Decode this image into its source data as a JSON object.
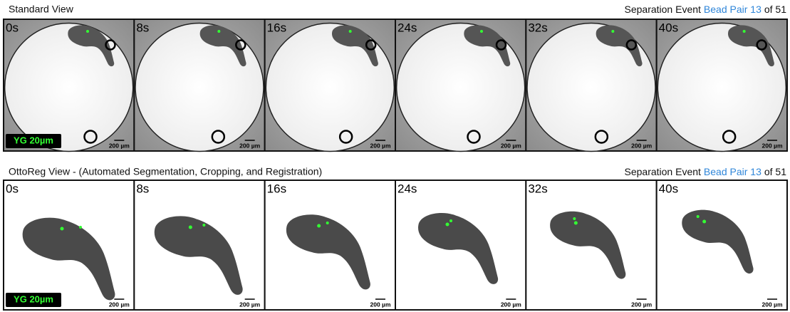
{
  "rows": [
    {
      "title": "Standard View",
      "event": {
        "prefix": "Separation Event",
        "highlight": "Bead Pair 13",
        "suffix": "of 51"
      },
      "frames": [
        "0s",
        "8s",
        "16s",
        "24s",
        "32s",
        "40s"
      ],
      "scale_bar": "200 µm",
      "badge": "YG 20µm"
    },
    {
      "title": "OttoReg View - (Automated Segmentation, Cropping, and Registration)",
      "event": {
        "prefix": "Separation Event",
        "highlight": "Bead Pair 13",
        "suffix": "of 51"
      },
      "frames": [
        "0s",
        "8s",
        "16s",
        "24s",
        "32s",
        "40s"
      ],
      "scale_bar": "200 µm",
      "badge": "YG 20µm"
    }
  ]
}
